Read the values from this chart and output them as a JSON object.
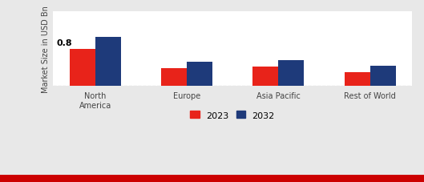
{
  "categories": [
    "North\nAmerica",
    "Europe",
    "Asia Pacific",
    "Rest of World"
  ],
  "values_2023": [
    0.8,
    0.38,
    0.42,
    0.3
  ],
  "values_2032": [
    1.05,
    0.52,
    0.56,
    0.44
  ],
  "color_2023": "#e8231a",
  "color_2032": "#1e3a7a",
  "ylabel": "Market Size in USD Bn",
  "annotation_text": "0.8",
  "bar_width": 0.28,
  "outer_bg": "#e8e8e8",
  "inner_bg": "#ffffff",
  "legend_labels": [
    "2023",
    "2032"
  ],
  "ylim": [
    0,
    1.6
  ],
  "bottom_bar_color": "#cc0000",
  "bottom_bar_height": 0.04
}
